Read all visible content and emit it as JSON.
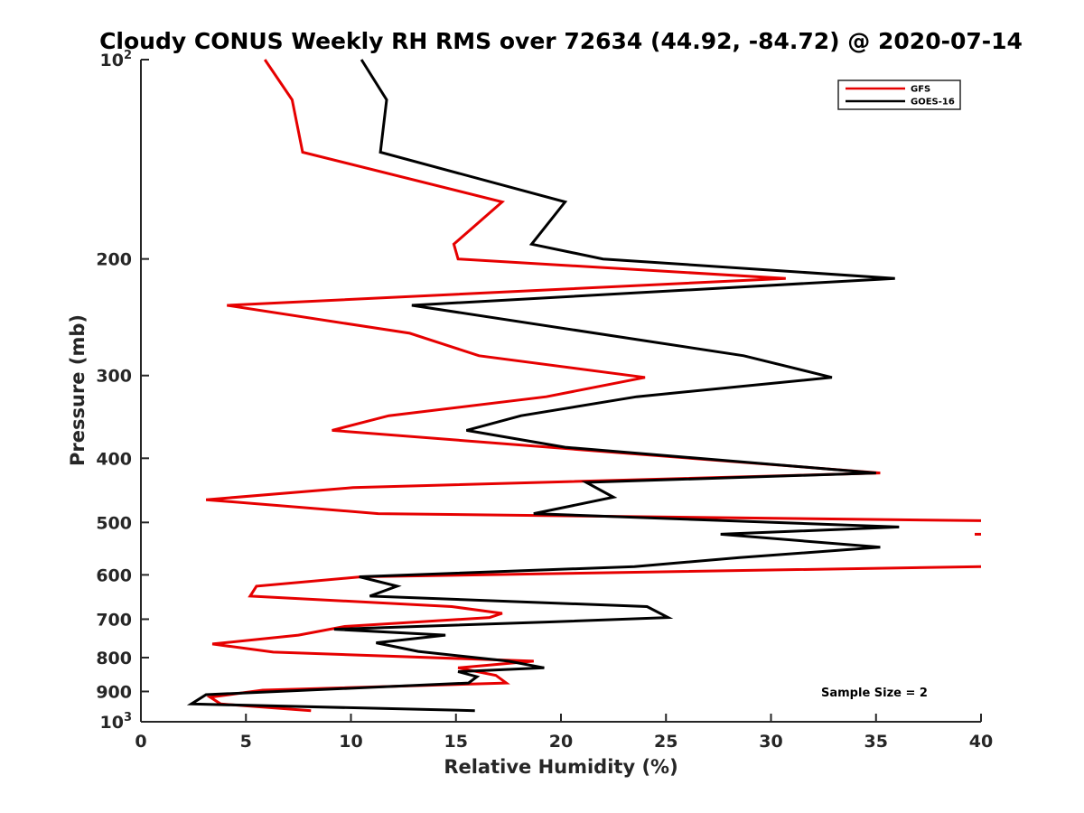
{
  "chart_data": {
    "type": "line",
    "title": "Cloudy CONUS Weekly RH RMS over 72634 (44.92, -84.72) @ 2020-07-14",
    "xlabel": "Relative Humidity (%)",
    "ylabel": "Pressure (mb)",
    "xlim": [
      0,
      40
    ],
    "ylim": [
      100,
      1000
    ],
    "y_scale": "log",
    "y_reversed": true,
    "x_ticks": [
      "0",
      "5",
      "10",
      "15",
      "20",
      "25",
      "30",
      "35",
      "40"
    ],
    "y_ticks": [
      {
        "value": 100,
        "base": "10",
        "exp": "2"
      },
      {
        "value": 200,
        "label": "200"
      },
      {
        "value": 300,
        "label": "300"
      },
      {
        "value": 400,
        "label": "400"
      },
      {
        "value": 500,
        "label": "500"
      },
      {
        "value": 600,
        "label": "600"
      },
      {
        "value": 700,
        "label": "700"
      },
      {
        "value": 800,
        "label": "800"
      },
      {
        "value": 900,
        "label": "900"
      },
      {
        "value": 1000,
        "base": "10",
        "exp": "3"
      }
    ],
    "grid": false,
    "legend_position": "top-right",
    "annotation": "Sample Size = 2",
    "series": [
      {
        "name": "GFS",
        "color": "#e60000",
        "segments": [
          [
            [
              5.9,
              100
            ],
            [
              7.2,
              115
            ],
            [
              7.7,
              138
            ],
            [
              17.2,
              164
            ],
            [
              14.9,
              190
            ],
            [
              15.1,
              200
            ],
            [
              30.7,
              214
            ],
            [
              4.1,
              235
            ],
            [
              12.8,
              259
            ],
            [
              16.1,
              280
            ],
            [
              24.0,
              302
            ],
            [
              19.3,
              323
            ],
            [
              11.8,
              345
            ],
            [
              9.1,
              363
            ],
            [
              35.2,
              421
            ],
            [
              10.1,
              443
            ],
            [
              3.1,
              462
            ],
            [
              11.3,
              485
            ],
            [
              40.0,
              497
            ]
          ],
          [
            [
              39.7,
              521
            ],
            [
              40.0,
              521
            ]
          ],
          [
            [
              40.0,
              583
            ],
            [
              10.5,
              604
            ],
            [
              5.5,
              624
            ],
            [
              5.2,
              646
            ],
            [
              14.8,
              670
            ],
            [
              17.2,
              686
            ],
            [
              16.6,
              696
            ],
            [
              9.7,
              718
            ],
            [
              7.5,
              740
            ],
            [
              3.4,
              763
            ],
            [
              6.3,
              785
            ],
            [
              18.7,
              810
            ],
            [
              15.1,
              829
            ],
            [
              16.9,
              851
            ],
            [
              17.4,
              874
            ],
            [
              5.8,
              896
            ],
            [
              3.3,
              918
            ],
            [
              3.8,
              940
            ],
            [
              8.1,
              962
            ]
          ]
        ]
      },
      {
        "name": "GOES-16",
        "color": "#000000",
        "segments": [
          [
            [
              10.5,
              100
            ],
            [
              11.7,
              115
            ],
            [
              11.4,
              138
            ],
            [
              20.2,
              164
            ],
            [
              18.6,
              190
            ],
            [
              22.0,
              200
            ],
            [
              35.9,
              214
            ],
            [
              12.9,
              235
            ],
            [
              28.7,
              280
            ],
            [
              32.9,
              302
            ],
            [
              23.6,
              323
            ],
            [
              18.1,
              345
            ],
            [
              15.5,
              363
            ],
            [
              20.2,
              385
            ],
            [
              35.0,
              421
            ],
            [
              21.2,
              435
            ],
            [
              22.5,
              458
            ],
            [
              18.7,
              485
            ],
            [
              36.1,
              508
            ],
            [
              27.6,
              521
            ],
            [
              35.2,
              545
            ],
            [
              28.5,
              565
            ],
            [
              23.5,
              583
            ],
            [
              10.4,
              604
            ],
            [
              12.2,
              624
            ],
            [
              10.9,
              646
            ],
            [
              24.1,
              670
            ],
            [
              25.1,
              696
            ],
            [
              19.3,
              707
            ],
            [
              9.2,
              725
            ],
            [
              14.5,
              740
            ],
            [
              11.2,
              760
            ],
            [
              13.2,
              783
            ],
            [
              17.5,
              810
            ],
            [
              19.2,
              829
            ],
            [
              15.1,
              840
            ],
            [
              16.0,
              855
            ],
            [
              15.6,
              874
            ],
            [
              3.1,
              910
            ],
            [
              2.4,
              940
            ],
            [
              15.9,
              962
            ]
          ]
        ]
      }
    ]
  }
}
